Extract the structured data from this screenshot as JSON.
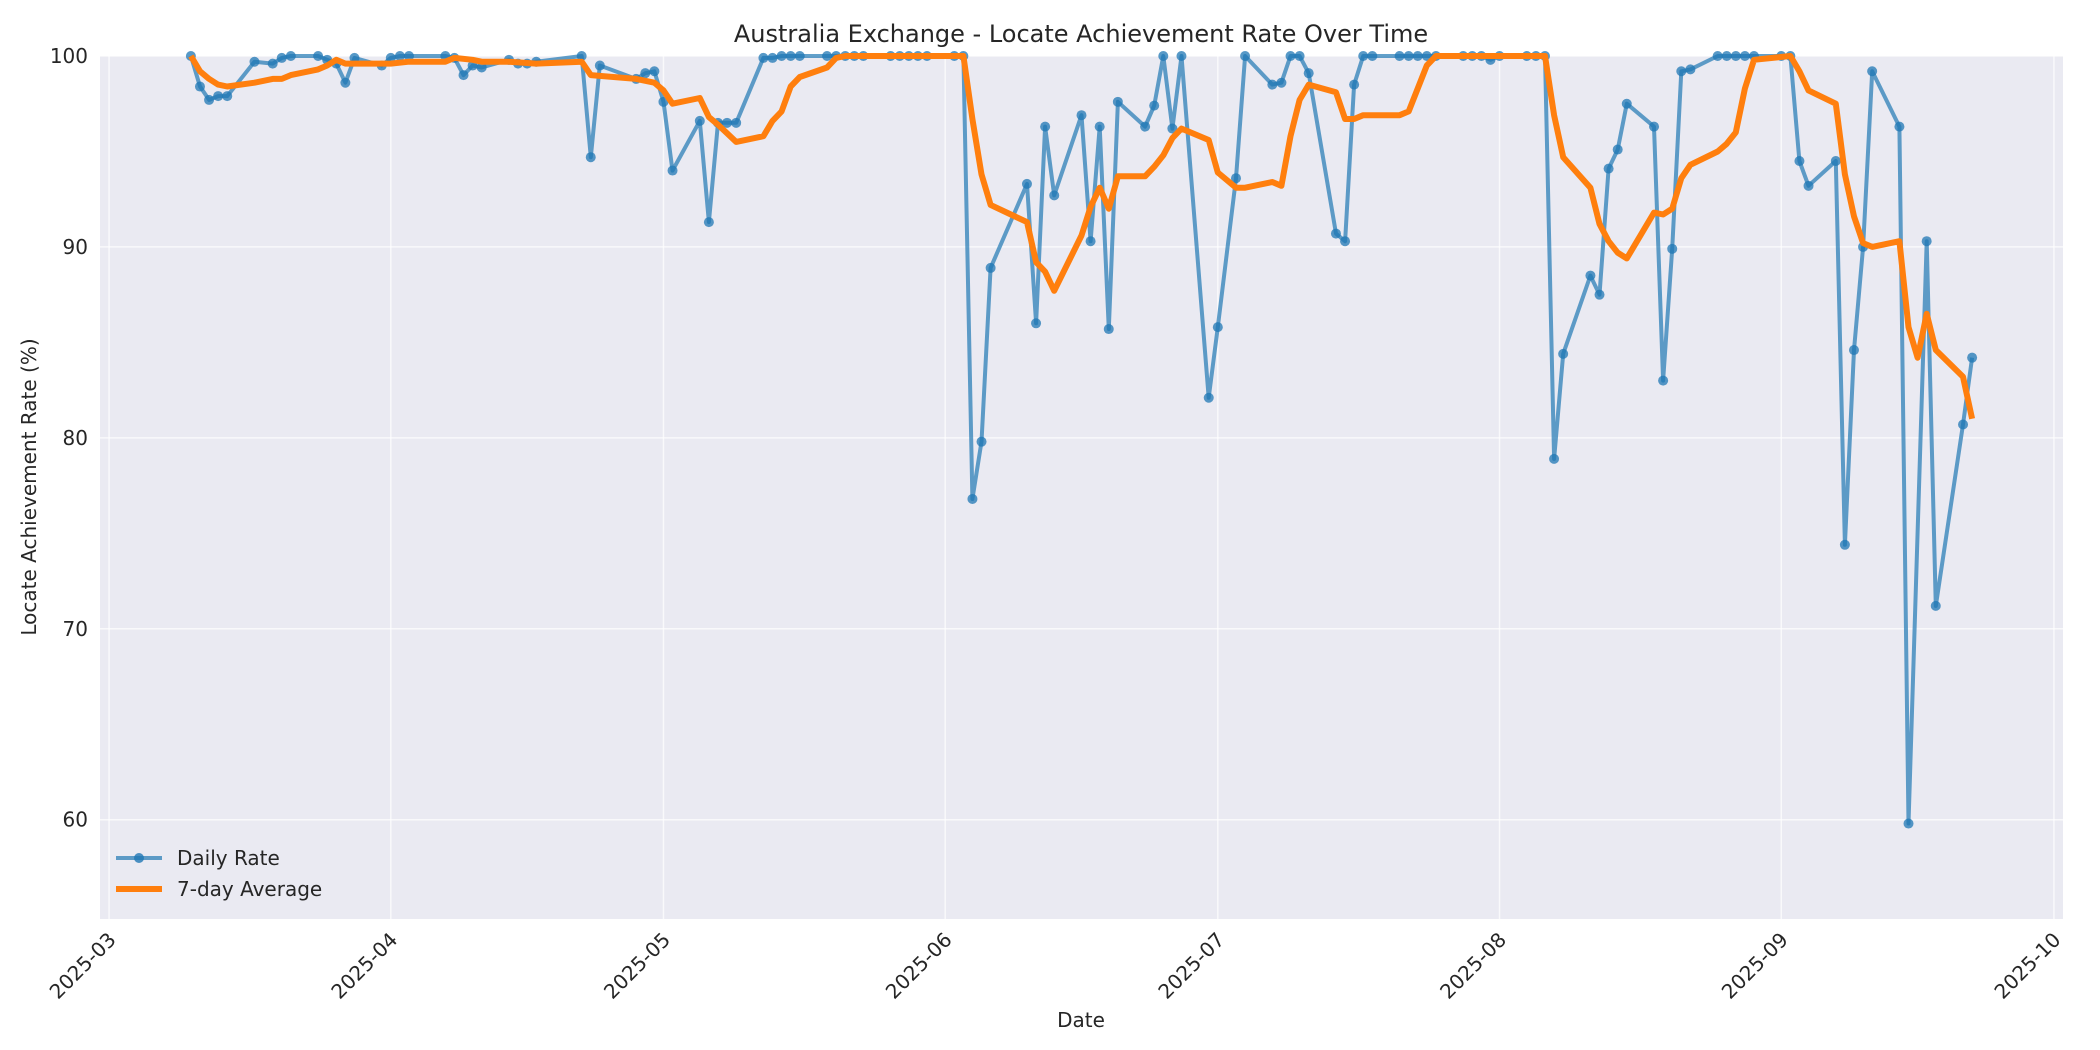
{
  "chart_data": {
    "type": "line",
    "title": "Australia Exchange - Locate Achievement Rate Over Time",
    "xlabel": "Date",
    "ylabel": "Locate Achievement Rate (%)",
    "ylim": [
      54.8,
      100
    ],
    "xlim": [
      "2025-02-28",
      "2025-10-02"
    ],
    "grid": true,
    "legend_position": "lower left",
    "x_ticks": [
      "2025-03",
      "2025-04",
      "2025-05",
      "2025-06",
      "2025-07",
      "2025-08",
      "2025-09",
      "2025-10"
    ],
    "y_ticks": [
      60,
      70,
      80,
      90,
      100
    ],
    "series": [
      {
        "name": "Daily Rate",
        "color": "#1f77b4",
        "marker": "circle",
        "points": [
          [
            "2025-03-10",
            100
          ],
          [
            "2025-03-11",
            98.4
          ],
          [
            "2025-03-12",
            97.7
          ],
          [
            "2025-03-13",
            97.9
          ],
          [
            "2025-03-14",
            97.9
          ],
          [
            "2025-03-17",
            99.7
          ],
          [
            "2025-03-19",
            99.6
          ],
          [
            "2025-03-20",
            99.9
          ],
          [
            "2025-03-21",
            100
          ],
          [
            "2025-03-24",
            100
          ],
          [
            "2025-03-25",
            99.8
          ],
          [
            "2025-03-26",
            99.6
          ],
          [
            "2025-03-27",
            98.6
          ],
          [
            "2025-03-28",
            99.9
          ],
          [
            "2025-03-31",
            99.5
          ],
          [
            "2025-04-01",
            99.9
          ],
          [
            "2025-04-02",
            100
          ],
          [
            "2025-04-03",
            100
          ],
          [
            "2025-04-07",
            100
          ],
          [
            "2025-04-08",
            99.9
          ],
          [
            "2025-04-09",
            99.0
          ],
          [
            "2025-04-10",
            99.5
          ],
          [
            "2025-04-11",
            99.4
          ],
          [
            "2025-04-14",
            99.8
          ],
          [
            "2025-04-15",
            99.6
          ],
          [
            "2025-04-16",
            99.6
          ],
          [
            "2025-04-17",
            99.7
          ],
          [
            "2025-04-22",
            100
          ],
          [
            "2025-04-23",
            94.7
          ],
          [
            "2025-04-24",
            99.5
          ],
          [
            "2025-04-28",
            98.8
          ],
          [
            "2025-04-29",
            99.1
          ],
          [
            "2025-04-30",
            99.2
          ],
          [
            "2025-05-01",
            97.6
          ],
          [
            "2025-05-02",
            94.0
          ],
          [
            "2025-05-05",
            96.6
          ],
          [
            "2025-05-06",
            91.3
          ],
          [
            "2025-05-07",
            96.5
          ],
          [
            "2025-05-08",
            96.5
          ],
          [
            "2025-05-09",
            96.5
          ],
          [
            "2025-05-12",
            99.9
          ],
          [
            "2025-05-13",
            99.9
          ],
          [
            "2025-05-14",
            100
          ],
          [
            "2025-05-15",
            100
          ],
          [
            "2025-05-16",
            100
          ],
          [
            "2025-05-19",
            100
          ],
          [
            "2025-05-20",
            100
          ],
          [
            "2025-05-21",
            100
          ],
          [
            "2025-05-22",
            100
          ],
          [
            "2025-05-23",
            100
          ],
          [
            "2025-05-26",
            100
          ],
          [
            "2025-05-27",
            100
          ],
          [
            "2025-05-28",
            100
          ],
          [
            "2025-05-29",
            100
          ],
          [
            "2025-05-30",
            100
          ],
          [
            "2025-06-02",
            100
          ],
          [
            "2025-06-03",
            100
          ],
          [
            "2025-06-04",
            76.8
          ],
          [
            "2025-06-05",
            79.8
          ],
          [
            "2025-06-06",
            88.9
          ],
          [
            "2025-06-10",
            93.3
          ],
          [
            "2025-06-11",
            86.0
          ],
          [
            "2025-06-12",
            96.3
          ],
          [
            "2025-06-13",
            92.7
          ],
          [
            "2025-06-16",
            96.9
          ],
          [
            "2025-06-17",
            90.3
          ],
          [
            "2025-06-18",
            96.3
          ],
          [
            "2025-06-19",
            85.7
          ],
          [
            "2025-06-20",
            97.6
          ],
          [
            "2025-06-23",
            96.3
          ],
          [
            "2025-06-24",
            97.4
          ],
          [
            "2025-06-25",
            100
          ],
          [
            "2025-06-26",
            96.2
          ],
          [
            "2025-06-27",
            100
          ],
          [
            "2025-06-30",
            82.1
          ],
          [
            "2025-07-01",
            85.8
          ],
          [
            "2025-07-03",
            93.6
          ],
          [
            "2025-07-04",
            100
          ],
          [
            "2025-07-07",
            98.5
          ],
          [
            "2025-07-08",
            98.6
          ],
          [
            "2025-07-09",
            100
          ],
          [
            "2025-07-10",
            100
          ],
          [
            "2025-07-11",
            99.1
          ],
          [
            "2025-07-14",
            90.7
          ],
          [
            "2025-07-15",
            90.3
          ],
          [
            "2025-07-16",
            98.5
          ],
          [
            "2025-07-17",
            100
          ],
          [
            "2025-07-18",
            100
          ],
          [
            "2025-07-21",
            100
          ],
          [
            "2025-07-22",
            100
          ],
          [
            "2025-07-23",
            100
          ],
          [
            "2025-07-24",
            100
          ],
          [
            "2025-07-25",
            100
          ],
          [
            "2025-07-28",
            100
          ],
          [
            "2025-07-29",
            100
          ],
          [
            "2025-07-30",
            100
          ],
          [
            "2025-07-31",
            99.8
          ],
          [
            "2025-08-01",
            100
          ],
          [
            "2025-08-04",
            100
          ],
          [
            "2025-08-05",
            100
          ],
          [
            "2025-08-06",
            100
          ],
          [
            "2025-08-07",
            78.9
          ],
          [
            "2025-08-08",
            84.4
          ],
          [
            "2025-08-11",
            88.5
          ],
          [
            "2025-08-12",
            87.5
          ],
          [
            "2025-08-13",
            94.1
          ],
          [
            "2025-08-14",
            95.1
          ],
          [
            "2025-08-15",
            97.5
          ],
          [
            "2025-08-18",
            96.3
          ],
          [
            "2025-08-19",
            83.0
          ],
          [
            "2025-08-20",
            89.9
          ],
          [
            "2025-08-21",
            99.2
          ],
          [
            "2025-08-22",
            99.3
          ],
          [
            "2025-08-25",
            100
          ],
          [
            "2025-08-26",
            100
          ],
          [
            "2025-08-27",
            100
          ],
          [
            "2025-08-28",
            100
          ],
          [
            "2025-08-29",
            100
          ],
          [
            "2025-09-01",
            100
          ],
          [
            "2025-09-02",
            100
          ],
          [
            "2025-09-03",
            94.5
          ],
          [
            "2025-09-04",
            93.2
          ],
          [
            "2025-09-07",
            94.5
          ],
          [
            "2025-09-08",
            74.4
          ],
          [
            "2025-09-09",
            84.6
          ],
          [
            "2025-09-10",
            90.0
          ],
          [
            "2025-09-11",
            99.2
          ],
          [
            "2025-09-14",
            96.3
          ],
          [
            "2025-09-15",
            59.8
          ],
          [
            "2025-09-17",
            90.3
          ],
          [
            "2025-09-18",
            71.2
          ],
          [
            "2025-09-21",
            80.7
          ],
          [
            "2025-09-22",
            84.2
          ]
        ]
      },
      {
        "name": "7-day Average",
        "color": "#ff7f0e",
        "marker": "none",
        "points": [
          [
            "2025-03-10",
            100
          ],
          [
            "2025-03-11",
            99.2
          ],
          [
            "2025-03-12",
            98.8
          ],
          [
            "2025-03-13",
            98.5
          ],
          [
            "2025-03-14",
            98.4
          ],
          [
            "2025-03-17",
            98.6
          ],
          [
            "2025-03-19",
            98.8
          ],
          [
            "2025-03-20",
            98.8
          ],
          [
            "2025-03-21",
            99.0
          ],
          [
            "2025-03-24",
            99.3
          ],
          [
            "2025-03-25",
            99.5
          ],
          [
            "2025-03-26",
            99.8
          ],
          [
            "2025-03-27",
            99.6
          ],
          [
            "2025-03-31",
            99.6
          ],
          [
            "2025-04-01",
            99.6
          ],
          [
            "2025-04-03",
            99.7
          ],
          [
            "2025-04-07",
            99.7
          ],
          [
            "2025-04-08",
            99.9
          ],
          [
            "2025-04-10",
            99.8
          ],
          [
            "2025-04-11",
            99.7
          ],
          [
            "2025-04-14",
            99.7
          ],
          [
            "2025-04-17",
            99.6
          ],
          [
            "2025-04-22",
            99.7
          ],
          [
            "2025-04-23",
            99.0
          ],
          [
            "2025-04-28",
            98.8
          ],
          [
            "2025-04-30",
            98.6
          ],
          [
            "2025-05-01",
            98.2
          ],
          [
            "2025-05-02",
            97.5
          ],
          [
            "2025-05-05",
            97.8
          ],
          [
            "2025-05-06",
            96.8
          ],
          [
            "2025-05-07",
            96.4
          ],
          [
            "2025-05-09",
            95.5
          ],
          [
            "2025-05-12",
            95.8
          ],
          [
            "2025-05-13",
            96.6
          ],
          [
            "2025-05-14",
            97.1
          ],
          [
            "2025-05-15",
            98.4
          ],
          [
            "2025-05-16",
            98.9
          ],
          [
            "2025-05-19",
            99.4
          ],
          [
            "2025-05-20",
            99.9
          ],
          [
            "2025-05-21",
            100
          ],
          [
            "2025-06-03",
            100
          ],
          [
            "2025-06-04",
            96.7
          ],
          [
            "2025-06-05",
            93.8
          ],
          [
            "2025-06-06",
            92.2
          ],
          [
            "2025-06-10",
            91.3
          ],
          [
            "2025-06-11",
            89.2
          ],
          [
            "2025-06-12",
            88.7
          ],
          [
            "2025-06-13",
            87.7
          ],
          [
            "2025-06-16",
            90.6
          ],
          [
            "2025-06-17",
            92.1
          ],
          [
            "2025-06-18",
            93.1
          ],
          [
            "2025-06-19",
            92.0
          ],
          [
            "2025-06-20",
            93.7
          ],
          [
            "2025-06-23",
            93.7
          ],
          [
            "2025-06-24",
            94.2
          ],
          [
            "2025-06-25",
            94.8
          ],
          [
            "2025-06-26",
            95.7
          ],
          [
            "2025-06-27",
            96.2
          ],
          [
            "2025-06-30",
            95.6
          ],
          [
            "2025-07-01",
            93.9
          ],
          [
            "2025-07-03",
            93.1
          ],
          [
            "2025-07-04",
            93.1
          ],
          [
            "2025-07-07",
            93.4
          ],
          [
            "2025-07-08",
            93.2
          ],
          [
            "2025-07-09",
            95.8
          ],
          [
            "2025-07-10",
            97.7
          ],
          [
            "2025-07-11",
            98.5
          ],
          [
            "2025-07-14",
            98.1
          ],
          [
            "2025-07-15",
            96.7
          ],
          [
            "2025-07-16",
            96.7
          ],
          [
            "2025-07-17",
            96.9
          ],
          [
            "2025-07-21",
            96.9
          ],
          [
            "2025-07-22",
            97.1
          ],
          [
            "2025-07-24",
            99.5
          ],
          [
            "2025-07-25",
            100
          ],
          [
            "2025-08-06",
            100
          ],
          [
            "2025-08-07",
            96.9
          ],
          [
            "2025-08-08",
            94.7
          ],
          [
            "2025-08-11",
            93.1
          ],
          [
            "2025-08-12",
            91.2
          ],
          [
            "2025-08-13",
            90.3
          ],
          [
            "2025-08-14",
            89.7
          ],
          [
            "2025-08-15",
            89.4
          ],
          [
            "2025-08-18",
            91.8
          ],
          [
            "2025-08-19",
            91.7
          ],
          [
            "2025-08-20",
            92.0
          ],
          [
            "2025-08-21",
            93.6
          ],
          [
            "2025-08-22",
            94.3
          ],
          [
            "2025-08-25",
            95.0
          ],
          [
            "2025-08-26",
            95.4
          ],
          [
            "2025-08-27",
            96.0
          ],
          [
            "2025-08-28",
            98.3
          ],
          [
            "2025-08-29",
            99.8
          ],
          [
            "2025-09-02",
            100
          ],
          [
            "2025-09-03",
            99.2
          ],
          [
            "2025-09-04",
            98.2
          ],
          [
            "2025-09-07",
            97.5
          ],
          [
            "2025-09-08",
            93.8
          ],
          [
            "2025-09-09",
            91.6
          ],
          [
            "2025-09-10",
            90.2
          ],
          [
            "2025-09-11",
            90.0
          ],
          [
            "2025-09-14",
            90.3
          ],
          [
            "2025-09-15",
            85.8
          ],
          [
            "2025-09-16",
            84.2
          ],
          [
            "2025-09-17",
            86.5
          ],
          [
            "2025-09-18",
            84.6
          ],
          [
            "2025-09-21",
            83.2
          ],
          [
            "2025-09-22",
            81.0
          ]
        ]
      }
    ]
  }
}
